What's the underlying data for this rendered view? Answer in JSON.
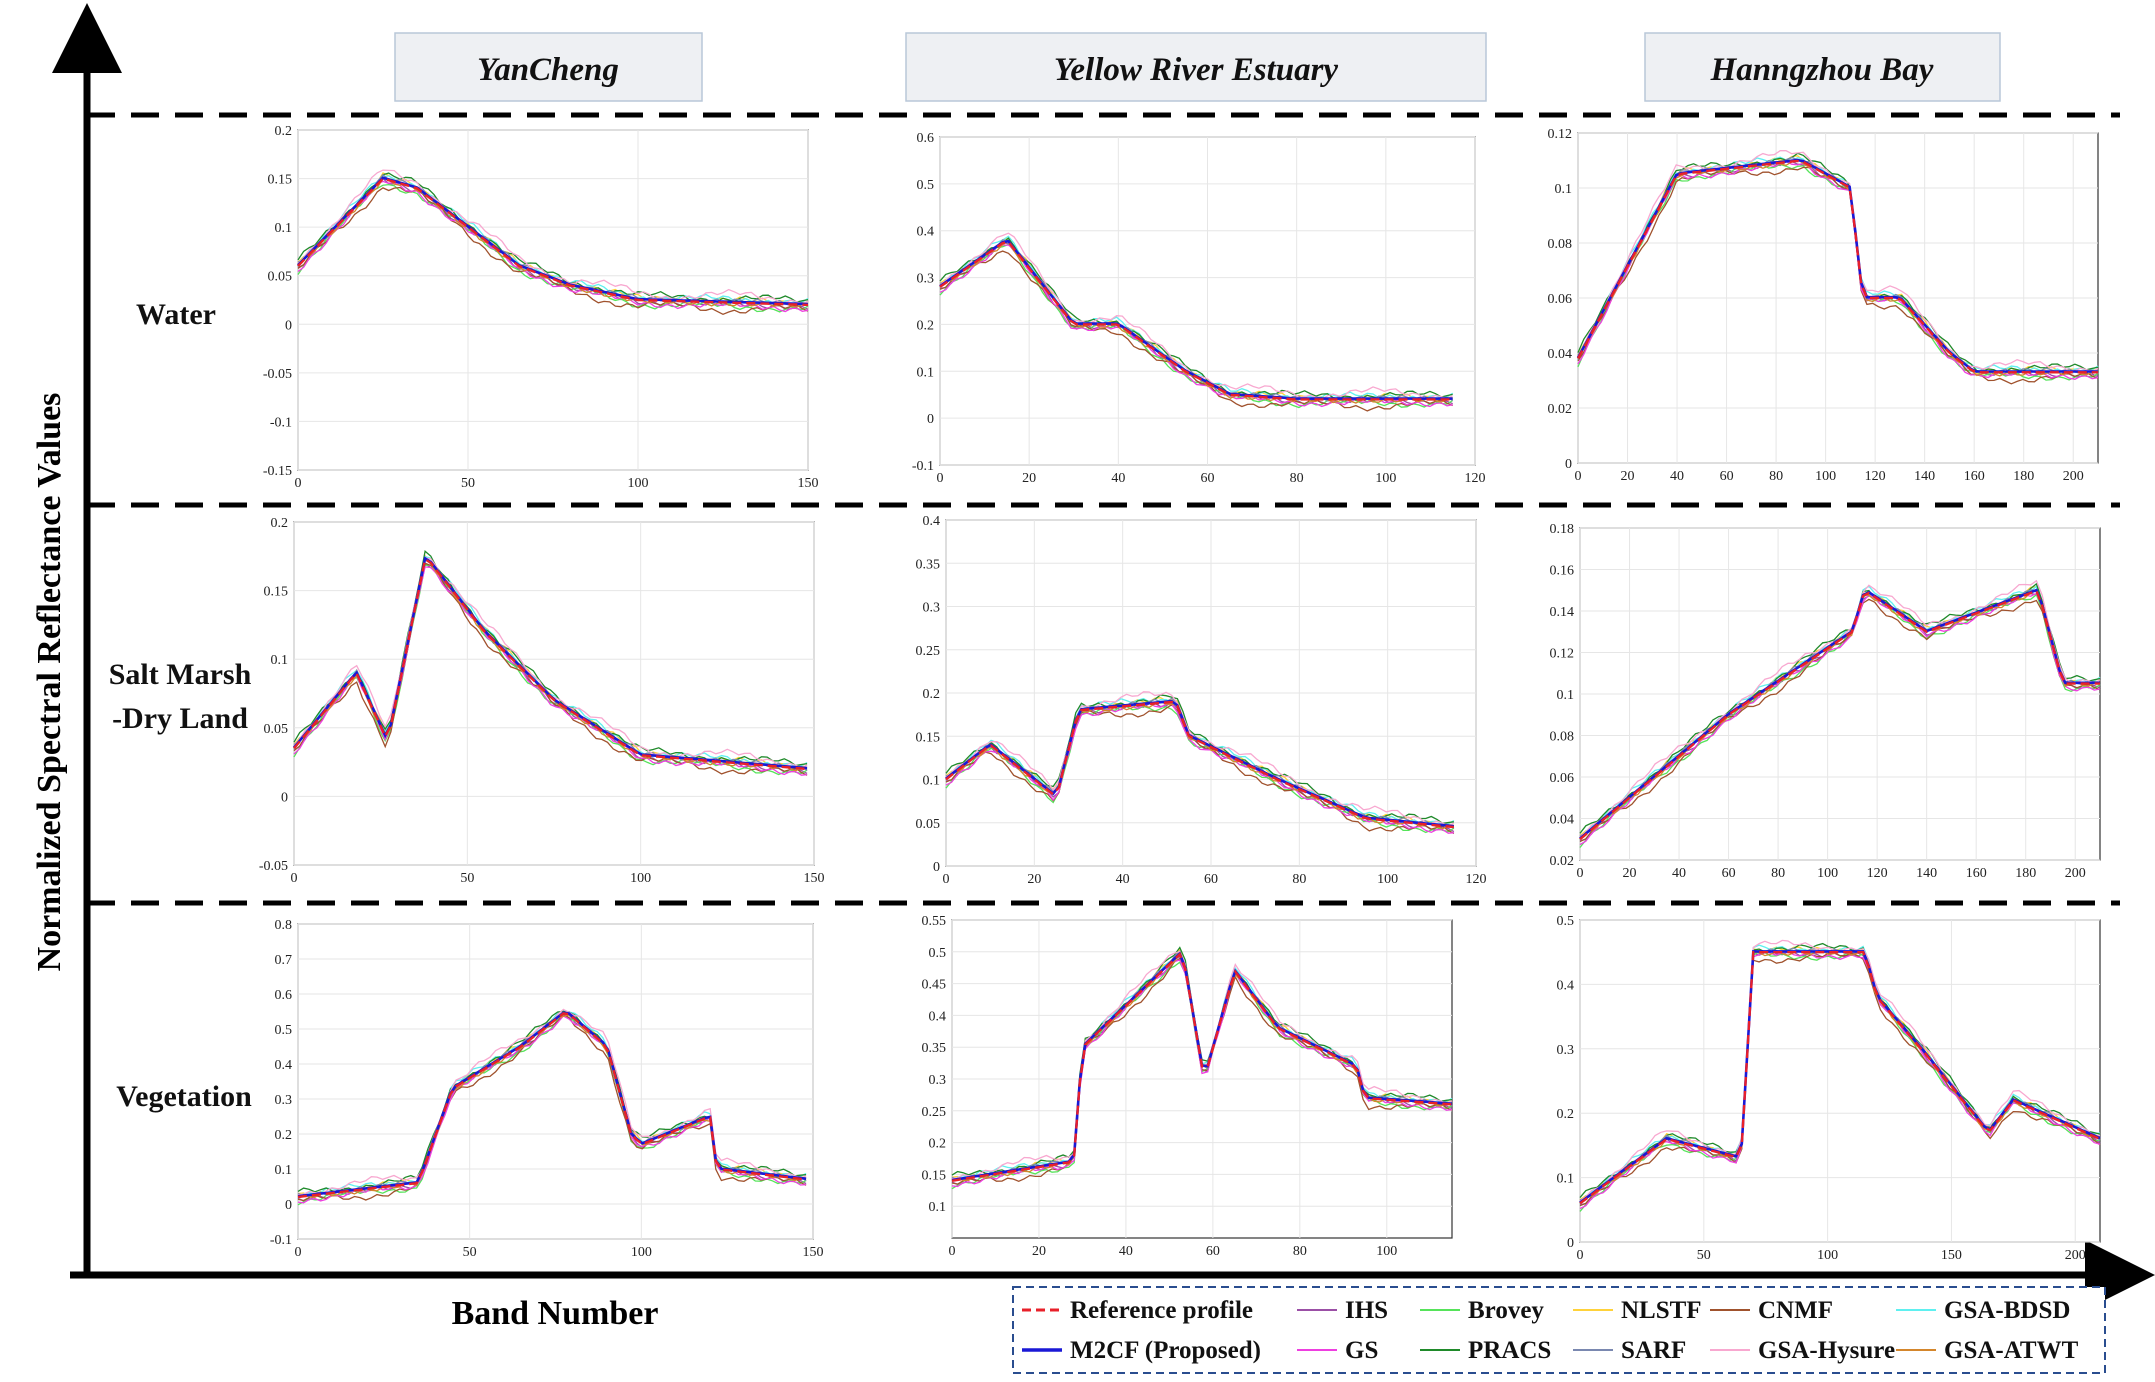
{
  "figure": {
    "y_axis_title": "Normalized Spectral Reflectance Values",
    "x_axis_title": "Band Number",
    "columns": [
      "YanCheng",
      "Yellow River Estuary",
      "Hanngzhou Bay"
    ],
    "rows": [
      [
        "Water"
      ],
      [
        "Salt Marsh",
        "-Dry Land"
      ],
      [
        "Vegetation"
      ]
    ]
  },
  "legend": [
    {
      "label": "Reference profile",
      "color": "#e8202a",
      "dashed": true
    },
    {
      "label": "IHS",
      "color": "#9b4fa6"
    },
    {
      "label": "Brovey",
      "color": "#56e35a"
    },
    {
      "label": "NLSTF",
      "color": "#ffd23a"
    },
    {
      "label": "CNMF",
      "color": "#a0522d"
    },
    {
      "label": "GSA-BDSD",
      "color": "#5ff0f0"
    },
    {
      "label": "M2CF (Proposed)",
      "color": "#1a18d6",
      "bold": true
    },
    {
      "label": "GS",
      "color": "#ee3fe0"
    },
    {
      "label": "PRACS",
      "color": "#1f8a2a"
    },
    {
      "label": "SARF",
      "color": "#7a88b0"
    },
    {
      "label": "GSA-Hysure",
      "color": "#f8a8d0"
    },
    {
      "label": "GSA-ATWT",
      "color": "#d4862c"
    }
  ],
  "chart_data": [
    {
      "type": "line",
      "region": "YanCheng",
      "class": "Water",
      "xlim": [
        0,
        150
      ],
      "ylim": [
        -0.15,
        0.2
      ],
      "xticks": [
        "0",
        "50",
        "100",
        "150"
      ],
      "yticks": [
        "-0.15",
        "-0.1",
        "-0.05",
        "0",
        "0.05",
        "0.1",
        "0.15",
        "0.2"
      ],
      "anchors": {
        "x": [
          0,
          25,
          35,
          50,
          65,
          80,
          100,
          150
        ],
        "y": [
          0.06,
          0.15,
          0.14,
          0.1,
          0.06,
          0.04,
          0.025,
          0.02
        ]
      }
    },
    {
      "type": "line",
      "region": "Yellow River Estuary",
      "class": "Water",
      "xlim": [
        0,
        120
      ],
      "ylim": [
        -0.1,
        0.6
      ],
      "xticks": [
        "0",
        "20",
        "40",
        "60",
        "80",
        "100",
        "120"
      ],
      "yticks": [
        "-0.1",
        "0",
        "0.1",
        "0.2",
        "0.3",
        "0.4",
        "0.5",
        "0.6"
      ],
      "anchors": {
        "x": [
          0,
          15,
          30,
          40,
          55,
          65,
          80,
          115
        ],
        "y": [
          0.28,
          0.38,
          0.2,
          0.2,
          0.1,
          0.05,
          0.04,
          0.04
        ]
      }
    },
    {
      "type": "line",
      "region": "Hanngzhou Bay",
      "class": "Water",
      "xlim": [
        0,
        210
      ],
      "ylim": [
        0,
        0.12
      ],
      "xticks": [
        "0",
        "20",
        "40",
        "60",
        "80",
        "100",
        "120",
        "140",
        "160",
        "180",
        "200"
      ],
      "yticks": [
        "0",
        "0.02",
        "0.04",
        "0.06",
        "0.08",
        "0.1",
        "0.12"
      ],
      "anchors": {
        "x": [
          0,
          40,
          90,
          110,
          115,
          130,
          150,
          160,
          210
        ],
        "y": [
          0.038,
          0.105,
          0.11,
          0.1,
          0.06,
          0.06,
          0.04,
          0.033,
          0.033
        ]
      }
    },
    {
      "type": "line",
      "region": "YanCheng",
      "class": "Salt Marsh -Dry Land",
      "xlim": [
        0,
        150
      ],
      "ylim": [
        -0.05,
        0.2
      ],
      "xticks": [
        "0",
        "50",
        "100",
        "150"
      ],
      "yticks": [
        "-0.05",
        "0",
        "0.05",
        "0.1",
        "0.15",
        "0.2"
      ],
      "anchors": {
        "x": [
          0,
          18,
          27,
          38,
          55,
          75,
          100,
          148
        ],
        "y": [
          0.035,
          0.09,
          0.04,
          0.175,
          0.12,
          0.07,
          0.03,
          0.02
        ]
      }
    },
    {
      "type": "line",
      "region": "Yellow River Estuary",
      "class": "Salt Marsh -Dry Land",
      "xlim": [
        0,
        120
      ],
      "ylim": [
        0,
        0.4
      ],
      "xticks": [
        "0",
        "20",
        "40",
        "60",
        "80",
        "100",
        "120"
      ],
      "yticks": [
        "0",
        "0.05",
        "0.1",
        "0.15",
        "0.2",
        "0.25",
        "0.3",
        "0.35",
        "0.4"
      ],
      "anchors": {
        "x": [
          0,
          10,
          25,
          30,
          52,
          55,
          75,
          95,
          115
        ],
        "y": [
          0.1,
          0.14,
          0.08,
          0.18,
          0.19,
          0.15,
          0.1,
          0.055,
          0.045
        ]
      }
    },
    {
      "type": "line",
      "region": "Hanngzhou Bay",
      "class": "Salt Marsh -Dry Land",
      "xlim": [
        0,
        210
      ],
      "ylim": [
        0.02,
        0.18
      ],
      "xticks": [
        "0",
        "20",
        "40",
        "60",
        "80",
        "100",
        "120",
        "140",
        "160",
        "180",
        "200"
      ],
      "yticks": [
        "0.02",
        "0.04",
        "0.06",
        "0.08",
        "0.1",
        "0.12",
        "0.14",
        "0.16",
        "0.18"
      ],
      "anchors": {
        "x": [
          0,
          60,
          110,
          115,
          140,
          185,
          195,
          210
        ],
        "y": [
          0.03,
          0.09,
          0.13,
          0.15,
          0.13,
          0.15,
          0.105,
          0.105
        ]
      }
    },
    {
      "type": "line",
      "region": "YanCheng",
      "class": "Vegetation",
      "xlim": [
        0,
        150
      ],
      "ylim": [
        -0.1,
        0.8
      ],
      "xticks": [
        "0",
        "50",
        "100",
        "150"
      ],
      "yticks": [
        "-0.1",
        "0",
        "0.1",
        "0.2",
        "0.3",
        "0.4",
        "0.5",
        "0.6",
        "0.7",
        "0.8"
      ],
      "anchors": {
        "x": [
          0,
          35,
          45,
          65,
          78,
          90,
          97,
          100,
          120,
          122,
          148
        ],
        "y": [
          0.02,
          0.06,
          0.33,
          0.45,
          0.55,
          0.45,
          0.2,
          0.17,
          0.25,
          0.1,
          0.07
        ]
      }
    },
    {
      "type": "line",
      "region": "Yellow River Estuary",
      "class": "Vegetation",
      "xlim": [
        0,
        115
      ],
      "ylim": [
        0.05,
        0.55
      ],
      "xticks": [
        "0",
        "20",
        "40",
        "60",
        "80",
        "100"
      ],
      "yticks": [
        "0.1",
        "0.15",
        "0.2",
        "0.25",
        "0.3",
        "0.35",
        "0.4",
        "0.45",
        "0.5",
        "0.55"
      ],
      "anchors": {
        "x": [
          0,
          28,
          30,
          53,
          58,
          65,
          75,
          93,
          95,
          115
        ],
        "y": [
          0.14,
          0.17,
          0.35,
          0.5,
          0.3,
          0.47,
          0.38,
          0.32,
          0.27,
          0.26
        ]
      }
    },
    {
      "type": "line",
      "region": "Hanngzhou Bay",
      "class": "Vegetation",
      "xlim": [
        0,
        210
      ],
      "ylim": [
        0,
        0.5
      ],
      "xticks": [
        "0",
        "50",
        "100",
        "150",
        "200"
      ],
      "yticks": [
        "0",
        "0.1",
        "0.2",
        "0.3",
        "0.4",
        "0.5"
      ],
      "anchors": {
        "x": [
          0,
          35,
          65,
          70,
          115,
          120,
          140,
          165,
          175,
          210
        ],
        "y": [
          0.06,
          0.16,
          0.13,
          0.45,
          0.45,
          0.38,
          0.29,
          0.17,
          0.22,
          0.16
        ]
      }
    }
  ]
}
